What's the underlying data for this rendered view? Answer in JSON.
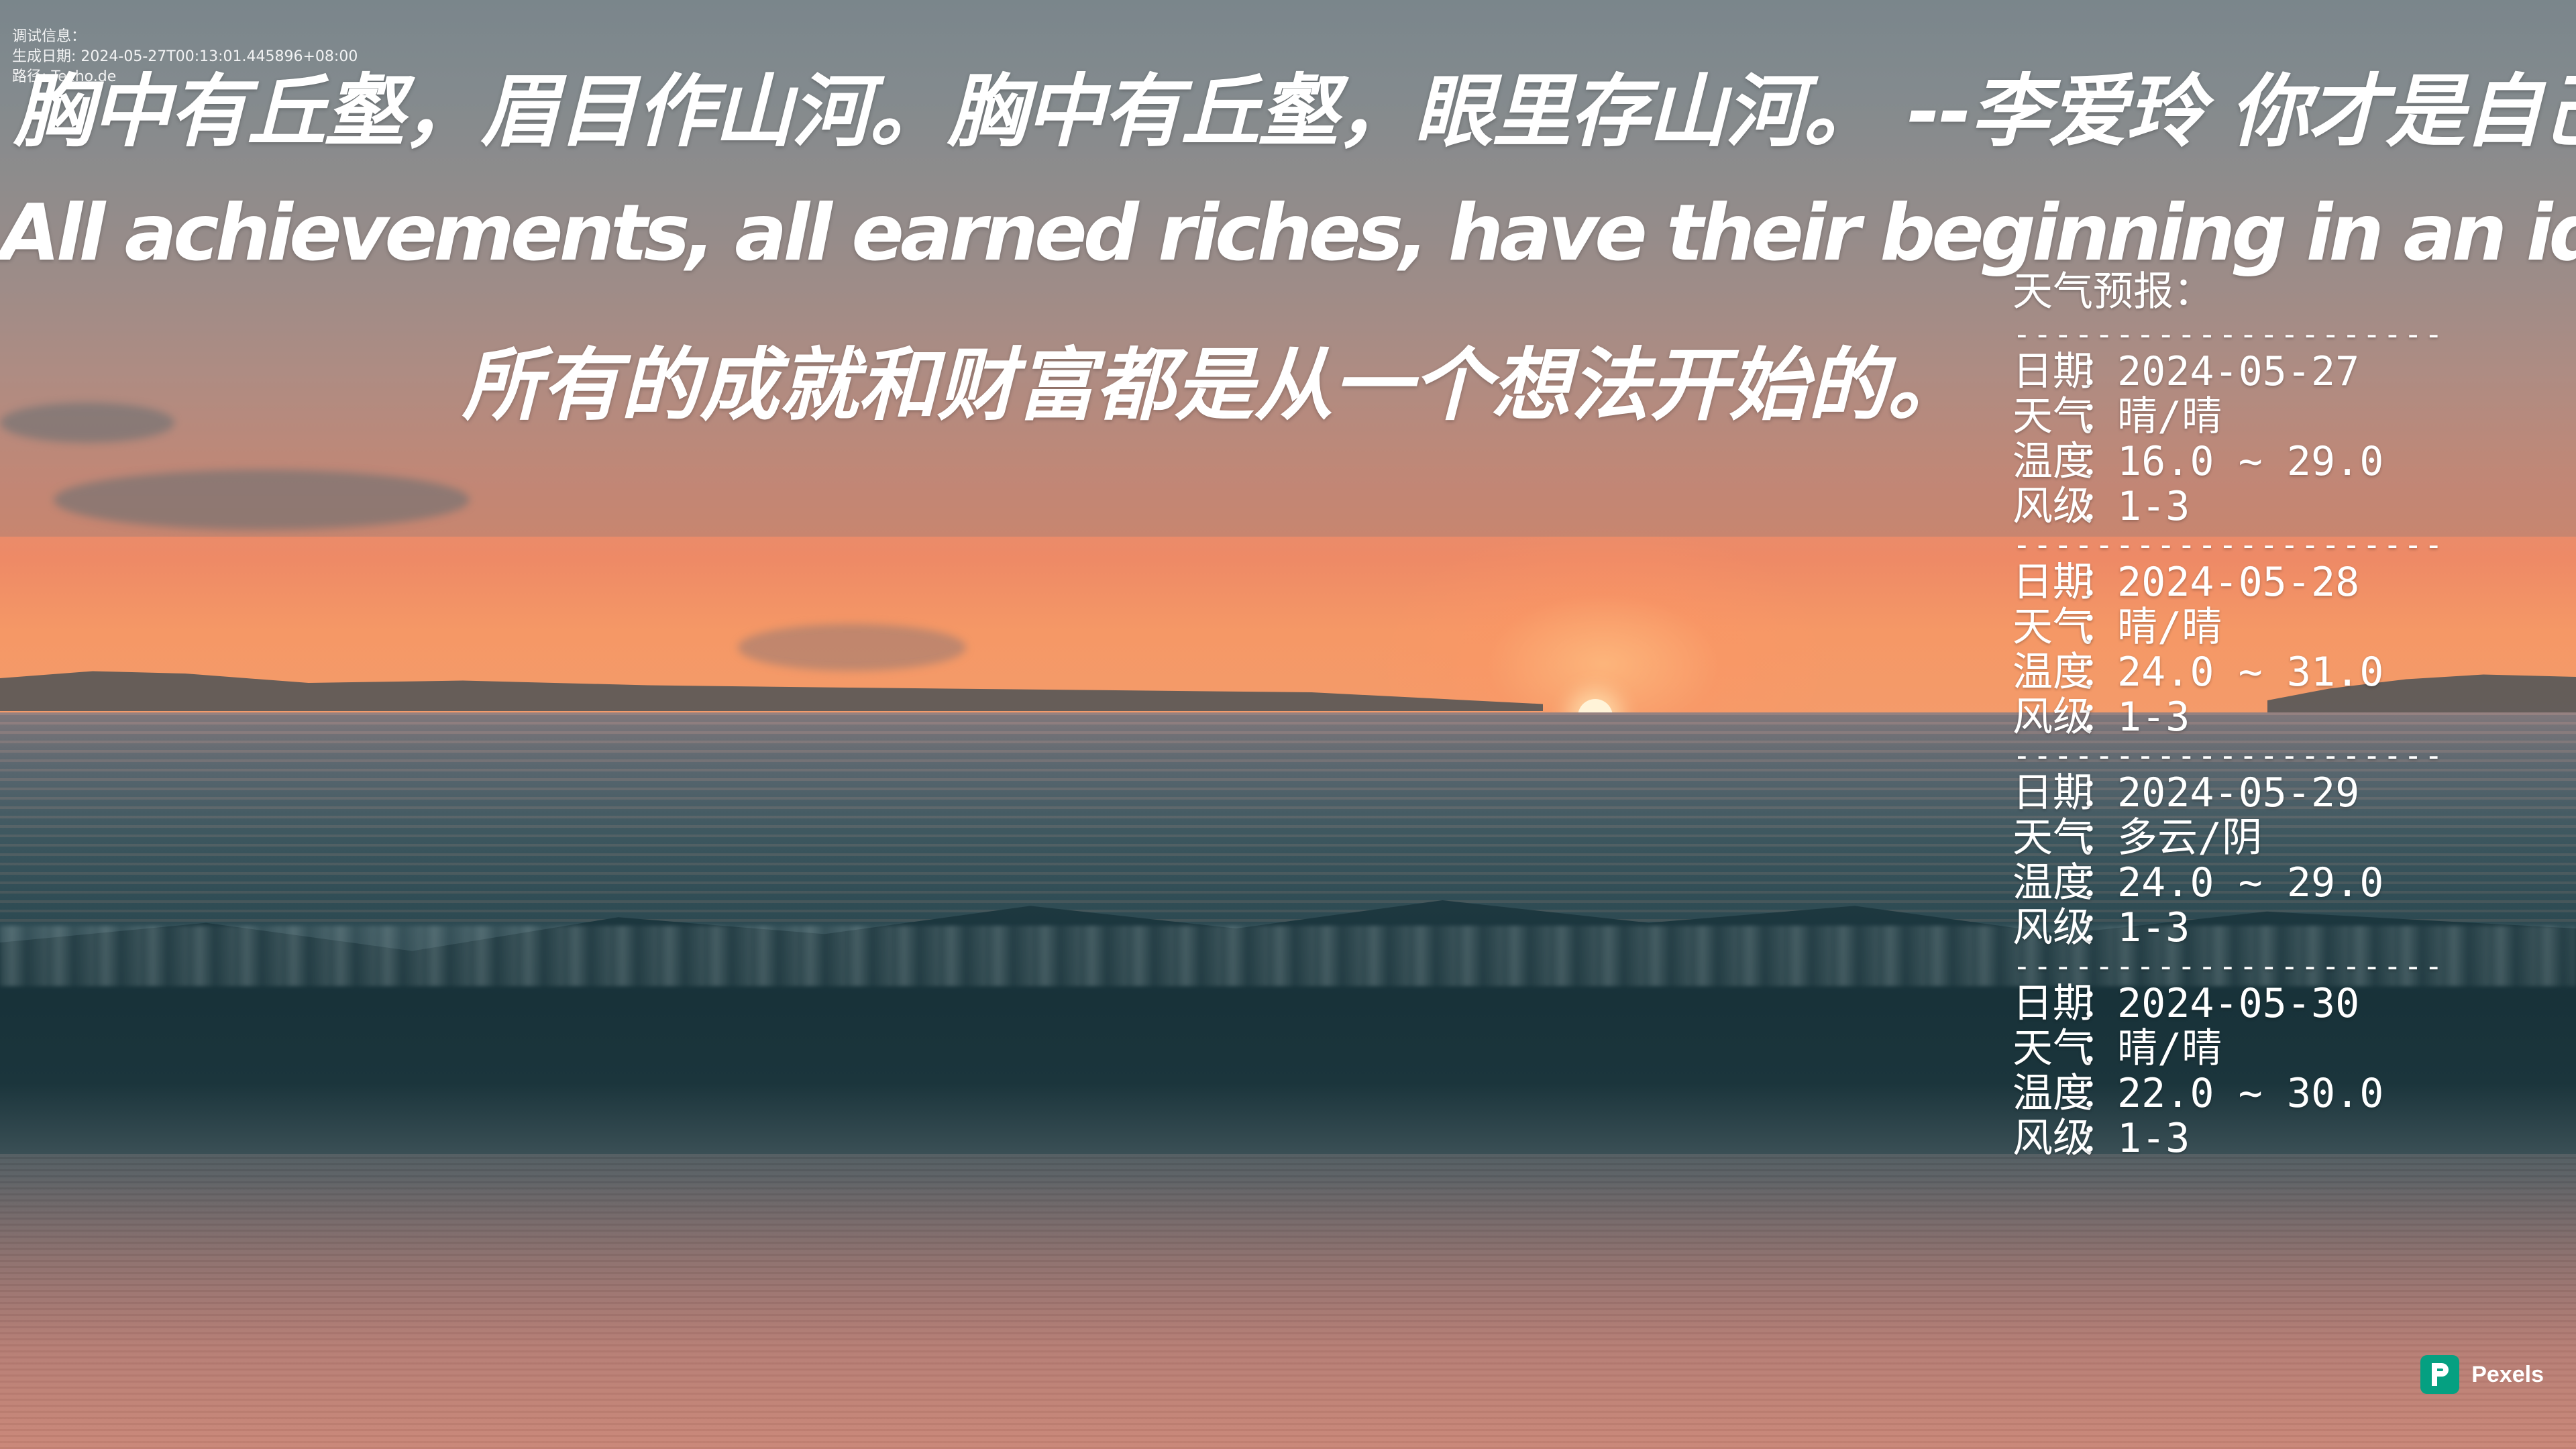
{
  "debug": {
    "lines": [
      "调试信息：",
      "生成日期: 2024-05-27T00:13:01.445896+08:00",
      "路径: Techo.de"
    ]
  },
  "quotes": {
    "line1": "胸中有丘壑，眉目作山河。胸中有丘壑，眼里存山河。 --李爱玲 你才是自己的过来人",
    "line2": "All achievements, all earned riches, have their beginning in an idea.",
    "line3": "所有的成就和财富都是从一个想法开始的。"
  },
  "weather": {
    "title": "天气预报：",
    "divider": "------------------------------",
    "labels": {
      "date": "日期",
      "weather": "天气",
      "temperature": "温度",
      "wind": "风级",
      "separator": "："
    },
    "days": [
      {
        "date": "2024-05-27",
        "weather": "晴/晴",
        "temperature": "16.0 ~ 29.0",
        "wind": "1-3"
      },
      {
        "date": "2024-05-28",
        "weather": "晴/晴",
        "temperature": "24.0 ~ 31.0",
        "wind": "1-3"
      },
      {
        "date": "2024-05-29",
        "weather": "多云/阴",
        "temperature": "24.0 ~ 29.0",
        "wind": "1-3"
      },
      {
        "date": "2024-05-30",
        "weather": "晴/晴",
        "temperature": "22.0 ~ 30.0",
        "wind": "1-3"
      }
    ]
  },
  "watermark": {
    "text": "Pexels",
    "icon": "pexels-logo-icon",
    "color": "#05a081"
  }
}
